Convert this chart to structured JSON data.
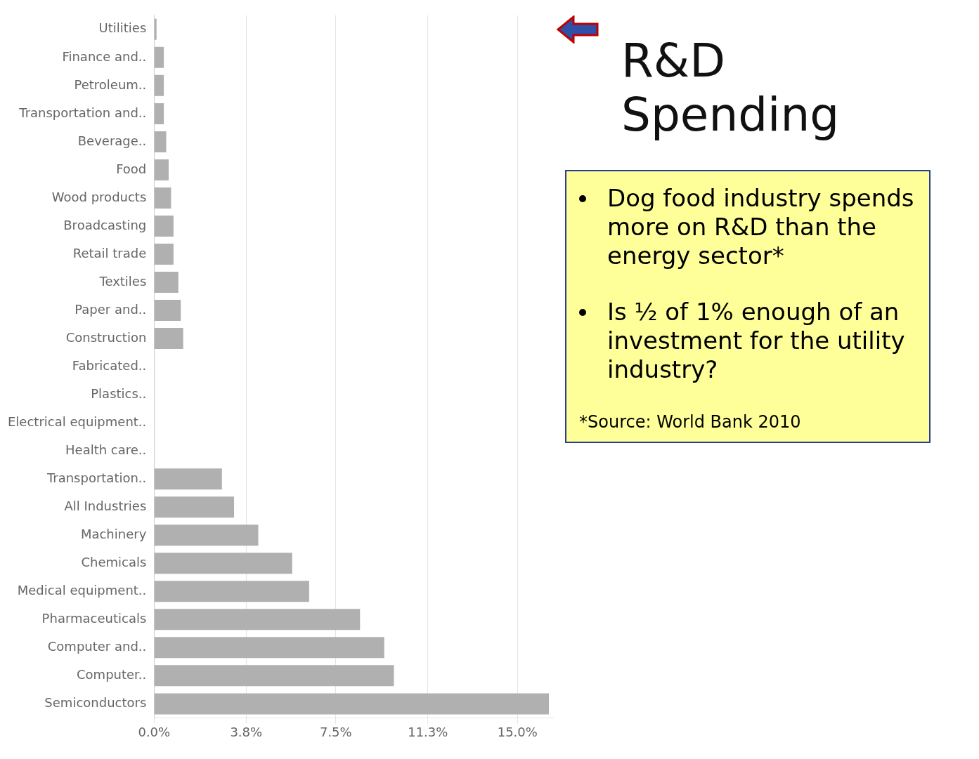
{
  "chart_data": {
    "type": "bar",
    "orientation": "horizontal",
    "title": "R&D Spending",
    "categories": [
      "Utilities",
      "Finance and..",
      "Petroleum..",
      "Transportation and..",
      "Beverage..",
      "Food",
      "Wood products",
      "Broadcasting",
      "Retail trade",
      "Textiles",
      "Paper and..",
      "Construction",
      "Fabricated..",
      "Plastics..",
      "Electrical equipment..",
      "Health care..",
      "Transportation..",
      "All Industries",
      "Machinery",
      "Chemicals",
      "Medical equipment..",
      "Pharmaceuticals",
      "Computer and..",
      "Computer..",
      "Semiconductors"
    ],
    "values": [
      0.1,
      0.4,
      0.4,
      0.4,
      0.5,
      0.6,
      0.7,
      0.8,
      0.8,
      1.0,
      1.1,
      1.2,
      null,
      null,
      null,
      null,
      2.8,
      3.3,
      4.3,
      5.7,
      6.4,
      8.5,
      9.5,
      9.9,
      16.3
    ],
    "color": "#b0b0b0",
    "xlim": [
      0,
      16.5
    ],
    "xticks": [
      {
        "value": 0,
        "label": "0.0%"
      },
      {
        "value": 3.8,
        "label": "3.8%"
      },
      {
        "value": 7.5,
        "label": "7.5%"
      },
      {
        "value": 11.3,
        "label": "11.3%"
      },
      {
        "value": 15,
        "label": "15.0%"
      }
    ],
    "grid": "x",
    "annotations": [
      "Dog food industry spends more on R&D than the energy sector*",
      "Is ½ of 1% enough of an investment for the utility industry?",
      "*Source: World Bank 2010"
    ]
  }
}
